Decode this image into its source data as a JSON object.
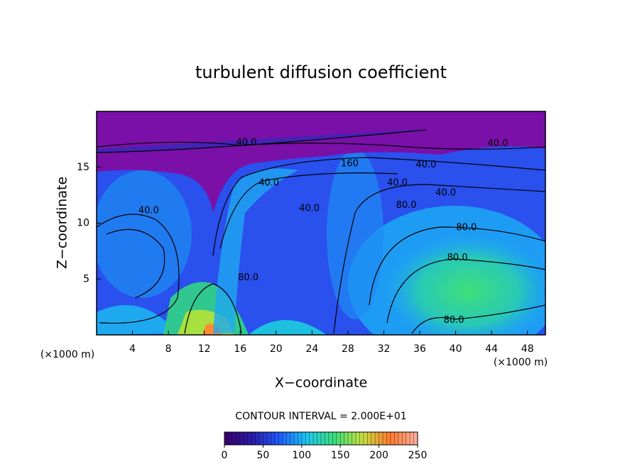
{
  "chart_data": {
    "type": "contour",
    "title": "turbulent diffusion coefficient",
    "xlabel": "X−coordinate",
    "ylabel": "Z−coordinate",
    "x_unit_left": "(×1000 m)",
    "x_unit_right": "(×1000 m)",
    "xlim": [
      0,
      50
    ],
    "ylim": [
      0,
      20
    ],
    "xticks": [
      4,
      8,
      12,
      16,
      20,
      24,
      28,
      32,
      36,
      40,
      44,
      48
    ],
    "yticks": [
      5,
      10,
      15
    ],
    "contour_interval": "CONTOUR INTERVAL = 2.000E+01",
    "contour_labels": [
      {
        "value": 40,
        "label": "40.0",
        "x": 16.7,
        "y": 17.2
      },
      {
        "value": 40,
        "label": "40.0",
        "x": 44.7,
        "y": 17.1
      },
      {
        "value": 40,
        "label": "40.0",
        "x": 36.7,
        "y": 15.2
      },
      {
        "value": 160,
        "label": "160",
        "x": 28.2,
        "y": 15.3
      },
      {
        "value": 40,
        "label": "40.0",
        "x": 33.5,
        "y": 13.6
      },
      {
        "value": 40,
        "label": "40.0",
        "x": 19.2,
        "y": 13.6
      },
      {
        "value": 40,
        "label": "40.0",
        "x": 38.9,
        "y": 12.7
      },
      {
        "value": 80,
        "label": "80.0",
        "x": 34.5,
        "y": 11.6
      },
      {
        "value": 40,
        "label": "40.0",
        "x": 23.7,
        "y": 11.3
      },
      {
        "value": 40,
        "label": "40.0",
        "x": 5.8,
        "y": 11.1
      },
      {
        "value": 80,
        "label": "80.0",
        "x": 41.2,
        "y": 9.6
      },
      {
        "value": 80,
        "label": "80.0",
        "x": 40.2,
        "y": 6.9
      },
      {
        "value": 80,
        "label": "80.0",
        "x": 16.9,
        "y": 5.1
      },
      {
        "value": 80,
        "label": "80.0",
        "x": 39.8,
        "y": 1.3
      }
    ],
    "colorbar": {
      "lim": [
        0,
        250
      ],
      "ticks": [
        0,
        50,
        100,
        150,
        200,
        250
      ],
      "colors": [
        "#3a006a",
        "#2a1aa8",
        "#1e5cff",
        "#1ec8f0",
        "#3ce07a",
        "#c8e040",
        "#ff7a30",
        "#ffb0a0"
      ]
    }
  }
}
